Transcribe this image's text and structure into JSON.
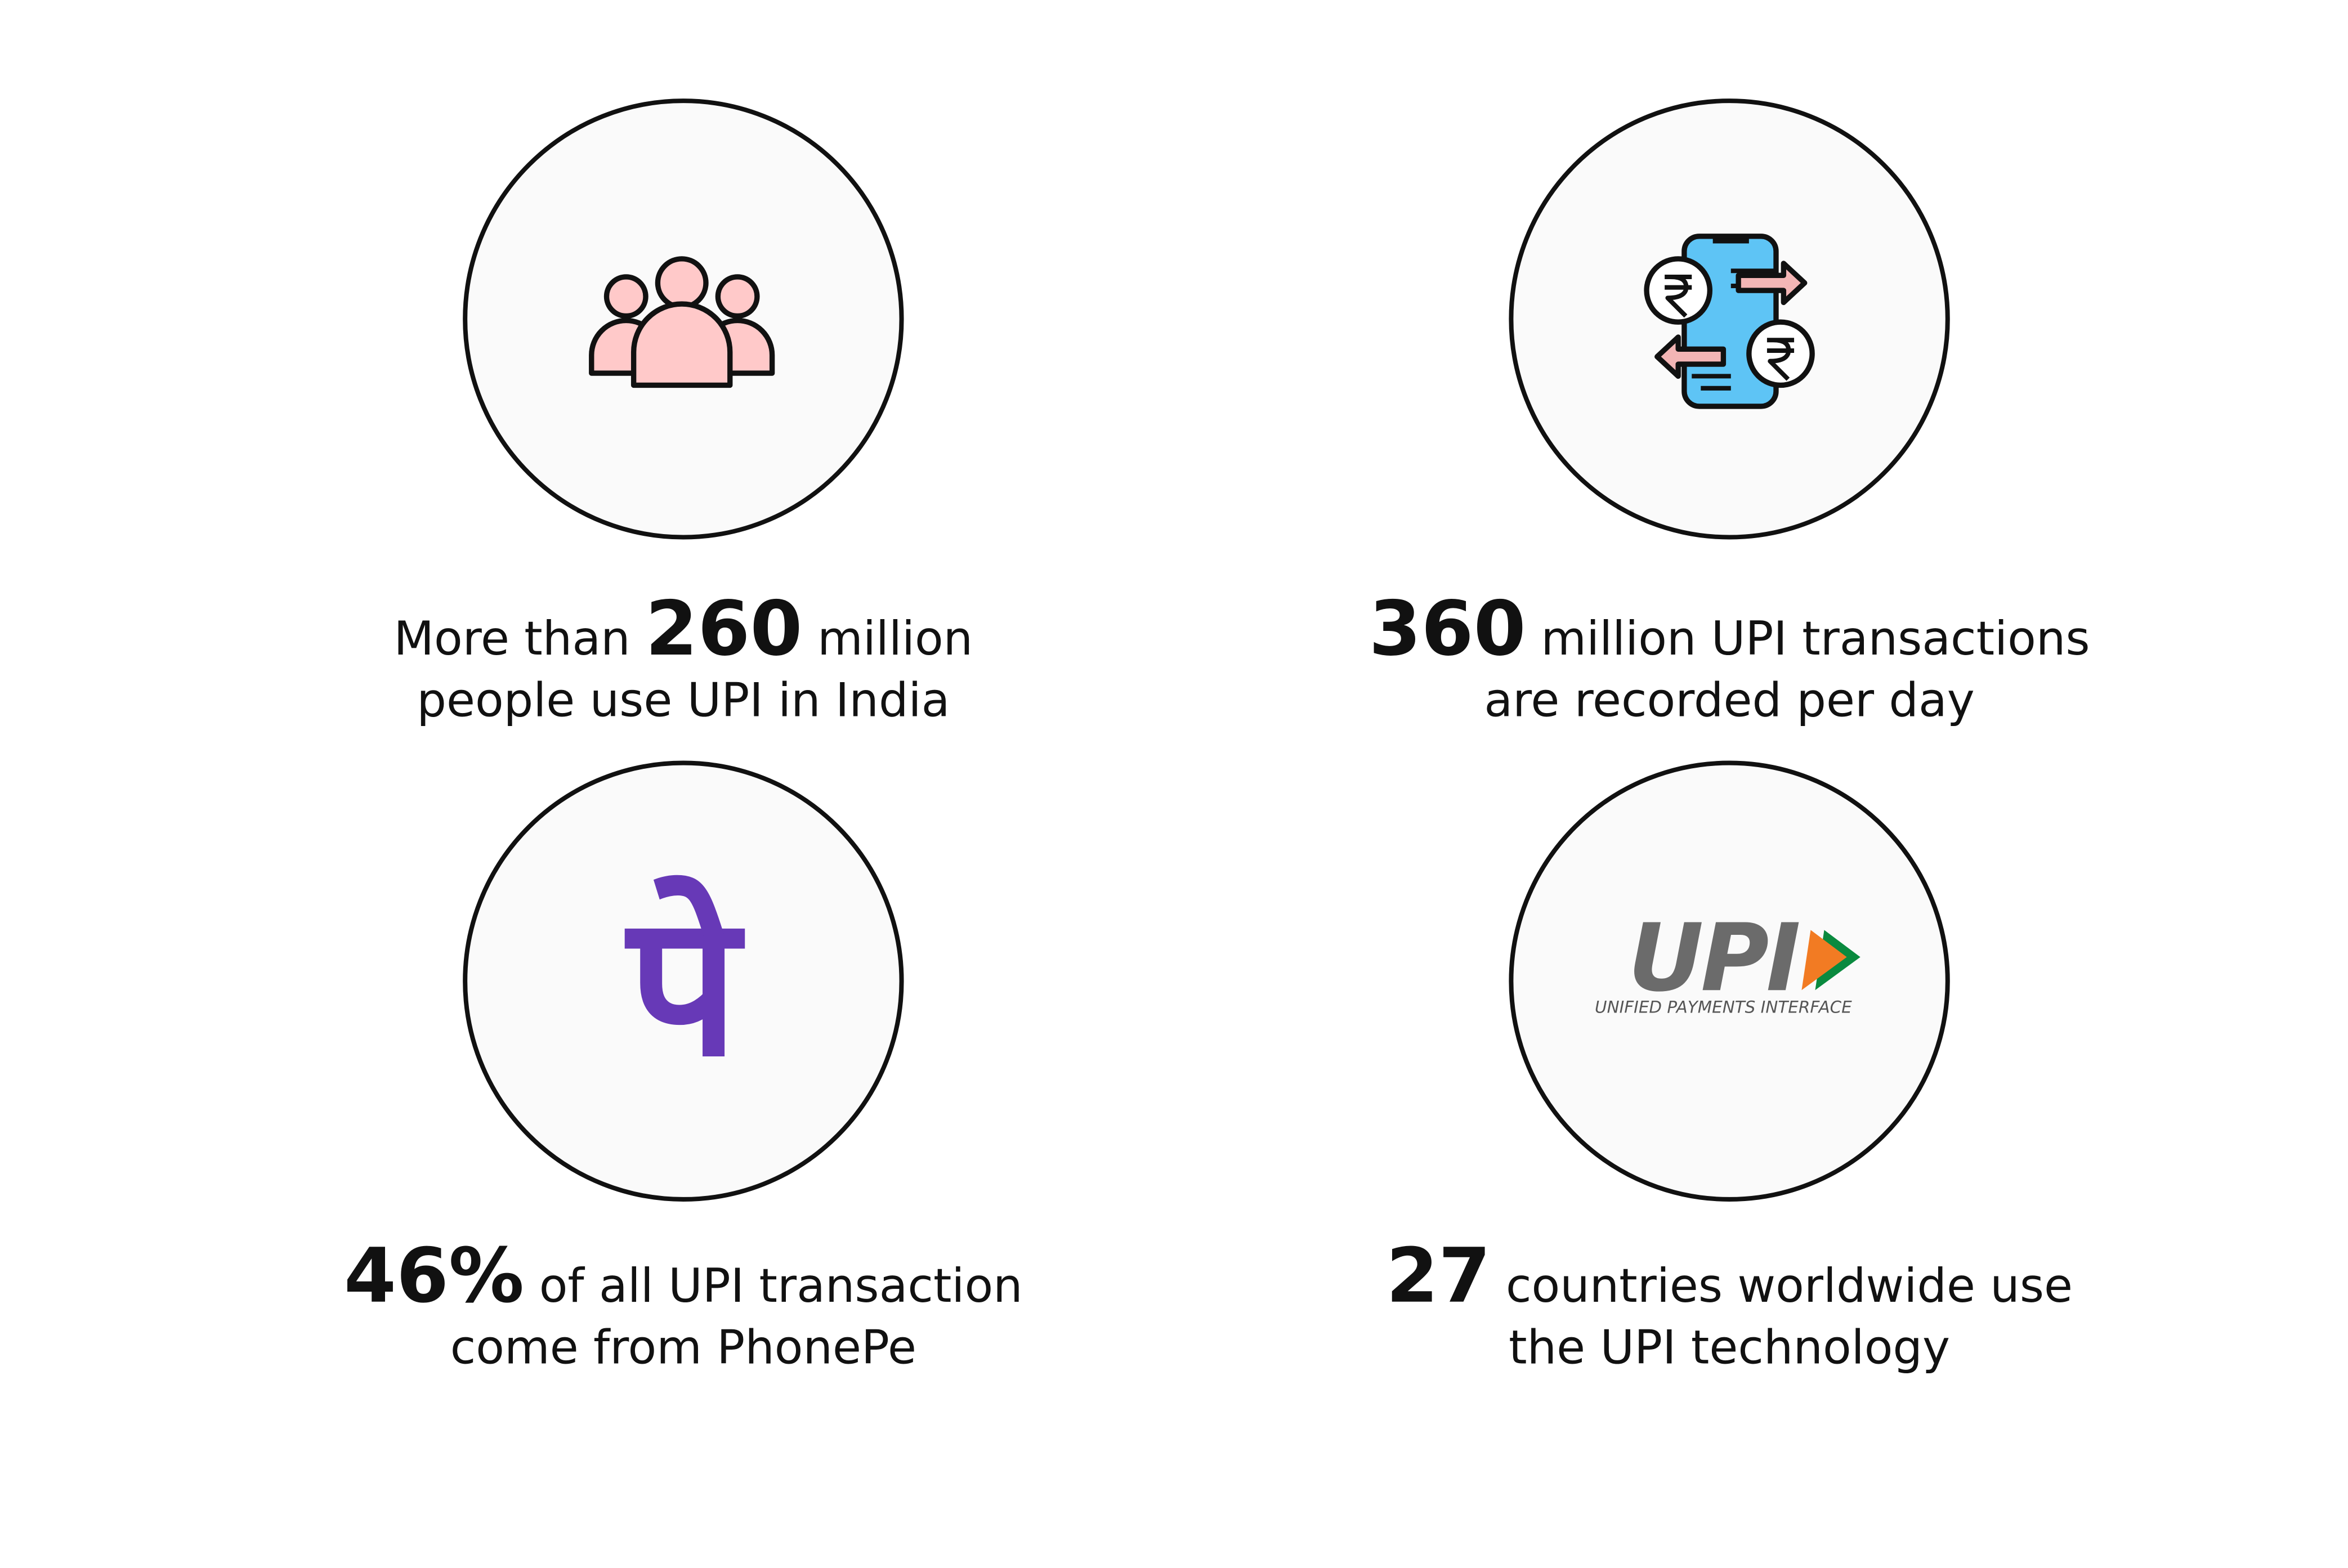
{
  "items": [
    {
      "pre": "More than",
      "stat": "260",
      "post": "million",
      "line2": "people use UPI in India"
    },
    {
      "stat": "360",
      "post": "million UPI transactions",
      "line2": "are recorded per day"
    },
    {
      "stat": "46%",
      "post": "of all UPI transaction",
      "line2": "come from PhonePe",
      "icon_text": "पे"
    },
    {
      "stat": "27",
      "post": "countries worldwide use",
      "line2": "the UPI technology",
      "icon_text": "UPI",
      "icon_caption": "UNIFIED PAYMENTS INTERFACE"
    }
  ]
}
